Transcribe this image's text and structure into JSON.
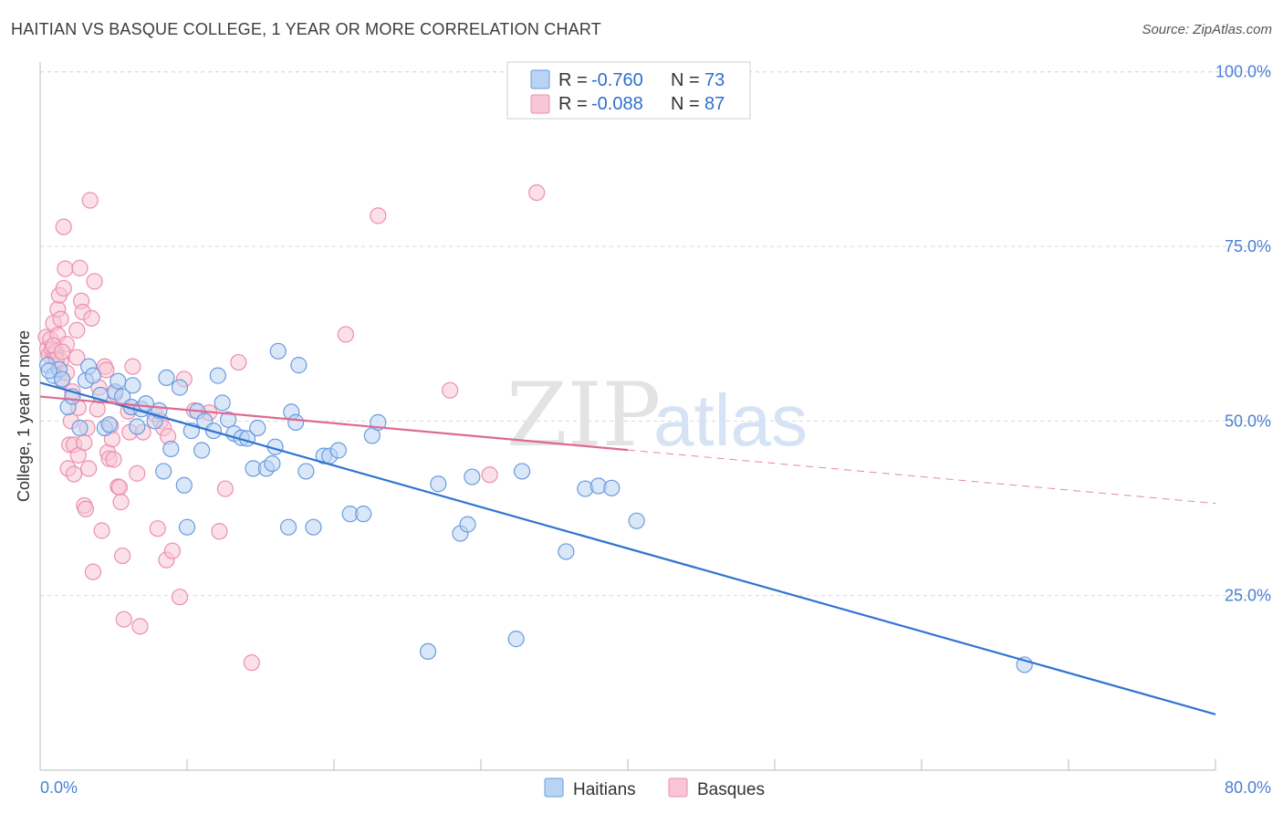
{
  "header": {
    "title": "HAITIAN VS BASQUE COLLEGE, 1 YEAR OR MORE CORRELATION CHART",
    "source": "Source: ZipAtlas.com"
  },
  "watermark": {
    "zip": "ZIP",
    "atlas": "atlas"
  },
  "stats_legend": {
    "rows": [
      {
        "r_label": "R =",
        "r_value": "-0.760",
        "n_label": "N =",
        "n_value": "73",
        "color": "#8ab6ea"
      },
      {
        "r_label": "R =",
        "r_value": "-0.088",
        "n_label": "N =",
        "n_value": "87",
        "color": "#f4a3bd"
      }
    ]
  },
  "colors": {
    "haitians_fill": "#b9d3f3",
    "haitians_stroke": "#6a9be0",
    "haitians_line": "#2f74d0",
    "basques_fill": "#f8c6d5",
    "basques_stroke": "#ec8fae",
    "basques_line": "#e06990",
    "grid": "#d9d9d9",
    "axis": "#bbbbbb"
  },
  "chart_data": {
    "type": "scatter",
    "title": "HAITIAN VS BASQUE COLLEGE, 1 YEAR OR MORE CORRELATION CHART",
    "xlabel": "",
    "ylabel": "College, 1 year or more",
    "xlim": [
      0,
      80
    ],
    "ylim": [
      0,
      105
    ],
    "x_tick_labels": [
      "0.0%",
      "80.0%"
    ],
    "y_ticks": [
      25,
      50,
      75,
      100
    ],
    "y_tick_labels": [
      "25.0%",
      "50.0%",
      "75.0%",
      "100.0%"
    ],
    "grid": "horizontal dashed",
    "legend_position": "bottom-center",
    "series": [
      {
        "name": "Haitians",
        "r": -0.76,
        "n": 73,
        "trend": {
          "x1": 0.0,
          "y1": 55.5,
          "x2": 80.0,
          "y2": 8.0,
          "solid_to_x": 80.0
        },
        "points": [
          [
            0.5,
            58.0
          ],
          [
            0.9,
            56.5
          ],
          [
            1.3,
            57.4
          ],
          [
            1.5,
            56.0
          ],
          [
            1.9,
            52.0
          ],
          [
            2.2,
            53.5
          ],
          [
            2.7,
            49.0
          ],
          [
            3.1,
            55.8
          ],
          [
            3.3,
            57.8
          ],
          [
            3.6,
            56.5
          ],
          [
            4.1,
            53.7
          ],
          [
            4.4,
            49.0
          ],
          [
            4.7,
            49.5
          ],
          [
            5.1,
            54.2
          ],
          [
            5.3,
            55.7
          ],
          [
            5.6,
            53.5
          ],
          [
            6.2,
            52.0
          ],
          [
            6.3,
            55.1
          ],
          [
            6.6,
            49.2
          ],
          [
            6.9,
            51.7
          ],
          [
            7.2,
            52.5
          ],
          [
            7.8,
            50.0
          ],
          [
            8.1,
            51.5
          ],
          [
            8.4,
            42.8
          ],
          [
            8.6,
            56.2
          ],
          [
            8.9,
            46.0
          ],
          [
            9.5,
            54.8
          ],
          [
            9.8,
            40.8
          ],
          [
            10.0,
            34.8
          ],
          [
            10.3,
            48.6
          ],
          [
            10.7,
            51.4
          ],
          [
            11.0,
            45.8
          ],
          [
            11.2,
            50.0
          ],
          [
            11.8,
            48.6
          ],
          [
            12.1,
            56.5
          ],
          [
            12.4,
            52.6
          ],
          [
            12.8,
            50.2
          ],
          [
            13.2,
            48.2
          ],
          [
            13.7,
            47.6
          ],
          [
            14.1,
            47.5
          ],
          [
            14.5,
            43.2
          ],
          [
            14.8,
            49.0
          ],
          [
            15.4,
            43.2
          ],
          [
            15.8,
            43.9
          ],
          [
            16.0,
            46.3
          ],
          [
            16.2,
            60.0
          ],
          [
            16.9,
            34.8
          ],
          [
            17.1,
            51.3
          ],
          [
            17.4,
            49.8
          ],
          [
            17.6,
            58.0
          ],
          [
            18.1,
            42.8
          ],
          [
            18.6,
            34.8
          ],
          [
            19.3,
            45.0
          ],
          [
            19.7,
            45.0
          ],
          [
            20.3,
            45.8
          ],
          [
            21.1,
            36.7
          ],
          [
            22.0,
            36.7
          ],
          [
            22.6,
            47.9
          ],
          [
            23.0,
            49.8
          ],
          [
            26.4,
            17.0
          ],
          [
            27.1,
            41.0
          ],
          [
            28.6,
            33.9
          ],
          [
            29.1,
            35.2
          ],
          [
            29.4,
            42.0
          ],
          [
            32.4,
            18.8
          ],
          [
            32.8,
            42.8
          ],
          [
            35.8,
            31.3
          ],
          [
            37.1,
            40.3
          ],
          [
            38.0,
            40.7
          ],
          [
            38.9,
            40.4
          ],
          [
            40.6,
            35.7
          ],
          [
            67.0,
            15.1
          ],
          [
            0.6,
            57.2
          ]
        ]
      },
      {
        "name": "Basques",
        "r": -0.088,
        "n": 87,
        "trend": {
          "x1": 0.0,
          "y1": 53.5,
          "x2": 80.0,
          "y2": 38.2,
          "solid_to_x": 40.0
        },
        "points": [
          [
            0.4,
            62.0
          ],
          [
            0.5,
            60.3
          ],
          [
            0.6,
            59.5
          ],
          [
            0.7,
            61.7
          ],
          [
            0.8,
            60.2
          ],
          [
            0.9,
            64.0
          ],
          [
            1.0,
            59.6
          ],
          [
            1.1,
            60.0
          ],
          [
            1.2,
            62.3
          ],
          [
            1.2,
            66.0
          ],
          [
            1.3,
            68.0
          ],
          [
            1.4,
            58.6
          ],
          [
            1.4,
            64.6
          ],
          [
            1.5,
            55.8
          ],
          [
            1.6,
            69.0
          ],
          [
            1.6,
            77.8
          ],
          [
            1.7,
            71.8
          ],
          [
            1.8,
            61.0
          ],
          [
            1.8,
            56.9
          ],
          [
            1.9,
            43.2
          ],
          [
            2.0,
            46.6
          ],
          [
            2.1,
            50.0
          ],
          [
            2.2,
            54.2
          ],
          [
            2.3,
            46.6
          ],
          [
            2.3,
            42.4
          ],
          [
            2.5,
            63.0
          ],
          [
            2.5,
            59.1
          ],
          [
            2.6,
            51.9
          ],
          [
            2.6,
            45.1
          ],
          [
            2.7,
            71.9
          ],
          [
            2.8,
            67.2
          ],
          [
            2.9,
            65.6
          ],
          [
            3.0,
            37.9
          ],
          [
            3.0,
            46.9
          ],
          [
            3.1,
            37.4
          ],
          [
            3.2,
            49.0
          ],
          [
            3.3,
            43.2
          ],
          [
            3.4,
            81.6
          ],
          [
            3.5,
            64.7
          ],
          [
            3.6,
            28.4
          ],
          [
            3.7,
            70.0
          ],
          [
            3.9,
            51.7
          ],
          [
            4.0,
            54.8
          ],
          [
            4.2,
            34.3
          ],
          [
            4.4,
            57.8
          ],
          [
            4.5,
            57.3
          ],
          [
            4.6,
            45.5
          ],
          [
            4.7,
            44.6
          ],
          [
            4.8,
            49.3
          ],
          [
            4.9,
            47.4
          ],
          [
            5.0,
            44.5
          ],
          [
            5.1,
            53.9
          ],
          [
            5.3,
            40.6
          ],
          [
            5.4,
            40.5
          ],
          [
            5.5,
            38.4
          ],
          [
            5.6,
            30.7
          ],
          [
            5.7,
            21.6
          ],
          [
            6.0,
            51.4
          ],
          [
            6.1,
            48.4
          ],
          [
            6.2,
            52.0
          ],
          [
            6.3,
            57.8
          ],
          [
            6.6,
            42.5
          ],
          [
            6.8,
            20.6
          ],
          [
            7.0,
            48.4
          ],
          [
            7.8,
            51.0
          ],
          [
            8.0,
            34.6
          ],
          [
            8.2,
            50.0
          ],
          [
            8.4,
            49.0
          ],
          [
            8.6,
            30.1
          ],
          [
            8.7,
            47.8
          ],
          [
            9.0,
            31.4
          ],
          [
            9.5,
            24.8
          ],
          [
            9.8,
            56.0
          ],
          [
            10.5,
            51.5
          ],
          [
            11.5,
            51.2
          ],
          [
            12.2,
            34.2
          ],
          [
            12.6,
            40.3
          ],
          [
            13.5,
            58.4
          ],
          [
            14.4,
            15.4
          ],
          [
            20.8,
            62.4
          ],
          [
            23.0,
            79.4
          ],
          [
            27.9,
            54.4
          ],
          [
            30.6,
            42.3
          ],
          [
            33.8,
            82.7
          ],
          [
            0.9,
            60.8
          ],
          [
            1.1,
            58.8
          ],
          [
            1.5,
            59.9
          ]
        ]
      }
    ]
  }
}
